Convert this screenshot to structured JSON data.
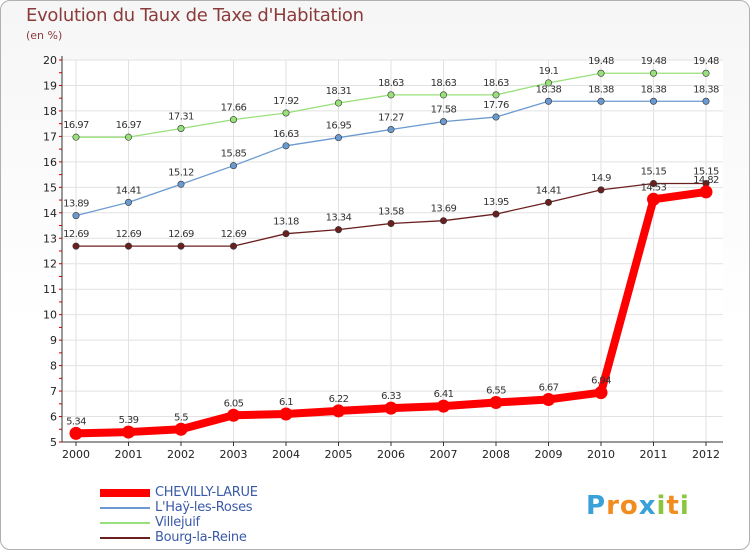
{
  "header": {
    "title": "Evolution du Taux de Taxe d'Habitation",
    "unit": "(en %)"
  },
  "logo": {
    "text": "Proxiti",
    "letters": [
      {
        "ch": "P",
        "color": "#3aa0d8"
      },
      {
        "ch": "r",
        "color": "#f28c1e"
      },
      {
        "ch": "o",
        "color": "#f28c1e"
      },
      {
        "ch": "x",
        "color": "#3aa0d8"
      },
      {
        "ch": "i",
        "color": "#8cc63f"
      },
      {
        "ch": "t",
        "color": "#f28c1e"
      },
      {
        "ch": "i",
        "color": "#8cc63f"
      }
    ]
  },
  "chart_data": {
    "type": "line",
    "title": "Evolution du Taux de Taxe d'Habitation",
    "ylabel": "(en %)",
    "xlabel": "",
    "x": [
      "2000",
      "2001",
      "2002",
      "2003",
      "2004",
      "2005",
      "2006",
      "2007",
      "2008",
      "2009",
      "2010",
      "2011",
      "2012"
    ],
    "ylim": [
      5,
      20
    ],
    "yticks": [
      5,
      6,
      7,
      8,
      9,
      10,
      11,
      12,
      13,
      14,
      15,
      16,
      17,
      18,
      19,
      20
    ],
    "grid": true,
    "legend_position": "bottom-left",
    "series": [
      {
        "name": "CHEVILLY-LARUE",
        "color": "#ff0000",
        "values": [
          5.34,
          5.39,
          5.5,
          6.05,
          6.1,
          6.22,
          6.33,
          6.41,
          6.55,
          6.67,
          6.94,
          14.53,
          14.82
        ]
      },
      {
        "name": "L'Haÿ-les-Roses",
        "color": "#6b9ad1",
        "values": [
          13.89,
          14.41,
          15.12,
          15.85,
          16.63,
          16.95,
          17.27,
          17.58,
          17.76,
          18.38,
          18.38,
          18.38,
          18.38
        ]
      },
      {
        "name": "Villejuif",
        "color": "#98e07a",
        "values": [
          16.97,
          16.97,
          17.31,
          17.66,
          17.92,
          18.31,
          18.63,
          18.63,
          18.63,
          19.1,
          19.48,
          19.48,
          19.48
        ]
      },
      {
        "name": "Bourg-la-Reine",
        "color": "#6b2020",
        "values": [
          12.69,
          12.69,
          12.69,
          12.69,
          13.18,
          13.34,
          13.58,
          13.69,
          13.95,
          14.41,
          14.9,
          15.15,
          15.15
        ]
      }
    ],
    "labels": [
      [
        "5.34",
        "5.39",
        "5.5",
        "6.05",
        "6.1",
        "6.22",
        "6.33",
        "6.41",
        "6.55",
        "6.67",
        "6.94",
        "14.53",
        "14.82"
      ],
      [
        "13.89",
        "14.41",
        "15.12",
        "15.85",
        "16.63",
        "16.95",
        "17.27",
        "17.58",
        "17.76",
        "18.38",
        "18.38",
        "18.38",
        "18.38"
      ],
      [
        "16.97",
        "16.97",
        "17.31",
        "17.66",
        "17.92",
        "18.31",
        "18.63",
        "18.63",
        "18.63",
        "19.1",
        "19.48",
        "19.48",
        "19.48"
      ],
      [
        "12.69",
        "12.69",
        "12.69",
        "12.69",
        "13.18",
        "13.34",
        "13.58",
        "13.69",
        "13.95",
        "14.41",
        "14.9",
        "15.15",
        "15.15"
      ]
    ]
  }
}
